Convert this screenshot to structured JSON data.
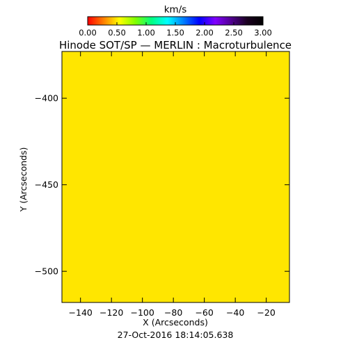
{
  "chart_data": {
    "type": "heatmap",
    "title": "Hinode SOT/SP — MERLIN : Macroturbulence",
    "xlabel": "X (Arcseconds)",
    "ylabel": "Y (Arcseconds)",
    "xlim": [
      -152,
      -5
    ],
    "ylim": [
      -518,
      -373
    ],
    "x_ticks": [
      -140,
      -120,
      -100,
      -80,
      -60,
      -40,
      -20
    ],
    "x_tick_labels": [
      "−140",
      "−120",
      "−100",
      "−80",
      "−60",
      "−40",
      "−20"
    ],
    "y_ticks": [
      -400,
      -450,
      -500
    ],
    "y_tick_labels": [
      "−400",
      "−450",
      "−500"
    ],
    "field_value_kms": 0.75,
    "field_color": "#ffe600",
    "colorbar": {
      "unit": "km/s",
      "range": [
        0.0,
        3.0
      ],
      "ticks": [
        0.0,
        0.5,
        1.0,
        1.5,
        2.0,
        2.5,
        3.0
      ],
      "tick_labels": [
        "0.00",
        "0.50",
        "1.00",
        "1.50",
        "2.00",
        "2.50",
        "3.00"
      ],
      "colormap": [
        "#ff0000",
        "#ff8000",
        "#ffff00",
        "#80ff00",
        "#00ff80",
        "#00ffff",
        "#0080ff",
        "#0000ff",
        "#8000ff",
        "#500090",
        "#1a0020",
        "#000000"
      ]
    },
    "timestamp": "27-Oct-2016 18:14:05.638"
  }
}
